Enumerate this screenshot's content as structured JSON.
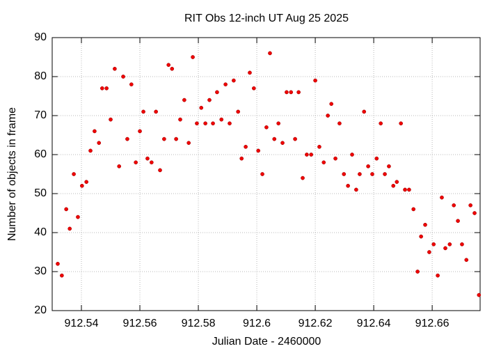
{
  "chart_data": {
    "type": "scatter",
    "title": "RIT Obs 12-inch UT Aug 25 2025",
    "x_label": "Julian Date - 2460000",
    "y_label": "Number of objects in frame",
    "color": "#ee0000",
    "grid": true,
    "xlim": [
      912.53,
      912.6764
    ],
    "ylim": [
      20,
      90
    ],
    "xticks": [
      912.54,
      912.56,
      912.58,
      912.6,
      912.62,
      912.64,
      912.66
    ],
    "yticks": [
      20,
      30,
      40,
      50,
      60,
      70,
      80,
      90
    ],
    "x": [
      912.5319,
      912.5333,
      912.5348,
      912.536,
      912.5374,
      912.5388,
      912.5402,
      912.5417,
      912.5431,
      912.5445,
      912.546,
      912.5471,
      912.5486,
      912.55,
      912.5514,
      912.5529,
      912.5543,
      912.5557,
      912.5571,
      912.5586,
      912.56,
      912.5612,
      912.5626,
      912.564,
      912.5655,
      912.5669,
      912.5683,
      912.5698,
      912.571,
      912.5724,
      912.5738,
      912.5752,
      912.5767,
      912.5781,
      912.5795,
      912.581,
      912.5824,
      912.5838,
      912.585,
      912.5864,
      912.5879,
      912.5893,
      912.5907,
      912.5921,
      912.5936,
      912.5948,
      912.5962,
      912.5976,
      912.599,
      912.6005,
      912.6019,
      912.6033,
      912.6045,
      912.606,
      912.6074,
      912.6088,
      912.6102,
      912.6117,
      912.6131,
      912.6143,
      912.6157,
      912.6171,
      912.6186,
      912.62,
      912.6214,
      912.6229,
      912.6243,
      912.6255,
      912.6269,
      912.6283,
      912.6298,
      912.6312,
      912.6326,
      912.634,
      912.6352,
      912.6367,
      912.6381,
      912.6395,
      912.641,
      912.6424,
      912.6438,
      912.6452,
      912.6467,
      912.6479,
      912.6493,
      912.6507,
      912.6521,
      912.6536,
      912.655,
      912.6562,
      912.6576,
      912.659,
      912.6605,
      912.6619,
      912.6633,
      912.6645,
      912.666,
      912.6674,
      912.6688,
      912.6702,
      912.6717,
      912.6731,
      912.6745,
      912.676
    ],
    "values": [
      32,
      29,
      46,
      41,
      55,
      44,
      52,
      53,
      61,
      66,
      63,
      77,
      77,
      69,
      82,
      57,
      80,
      64,
      78,
      58,
      66,
      71,
      59,
      58,
      71,
      56,
      64,
      83,
      82,
      64,
      69,
      74,
      63,
      85,
      68,
      72,
      68,
      74,
      68,
      76,
      69,
      78,
      68,
      79,
      71,
      59,
      62,
      81,
      77,
      61,
      55,
      67,
      86,
      64,
      68,
      63,
      76,
      76,
      64,
      76,
      54,
      60,
      60,
      79,
      62,
      58,
      70,
      73,
      59,
      68,
      55,
      52,
      60,
      51,
      55,
      71,
      57,
      55,
      59,
      68,
      55,
      57,
      52,
      53,
      68,
      51,
      51,
      46,
      30,
      39,
      42,
      35,
      37,
      29,
      49,
      36,
      37,
      47,
      43,
      37,
      33,
      47,
      45,
      24
    ]
  }
}
